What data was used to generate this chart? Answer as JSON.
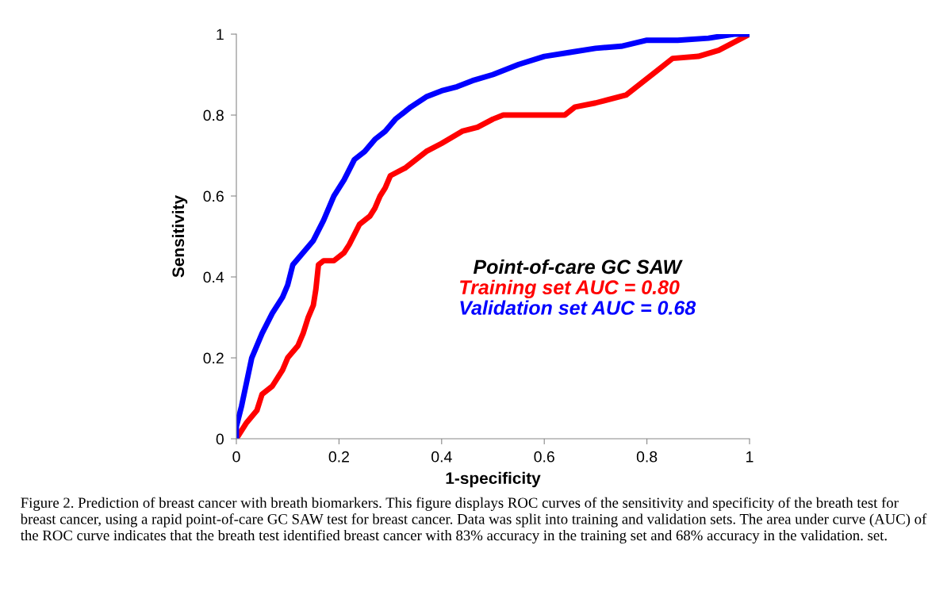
{
  "chart_data": {
    "type": "line",
    "xlabel": "1-specificity",
    "ylabel": "Sensitivity",
    "legend_title": "Point-of-care GC SAW",
    "legend": "center right",
    "grid": false,
    "marker": "none",
    "line_style": "solid",
    "xlim": [
      0,
      1
    ],
    "ylim": [
      0,
      1
    ],
    "xticks": [
      0,
      0.2,
      0.4,
      0.6,
      0.8,
      1
    ],
    "yticks": [
      0,
      0.2,
      0.4,
      0.6,
      0.8,
      1
    ],
    "series": [
      {
        "name": "Training set AUC = 0.80",
        "color": "#ff0000",
        "x": [
          0,
          0.02,
          0.04,
          0.05,
          0.07,
          0.09,
          0.1,
          0.12,
          0.13,
          0.14,
          0.15,
          0.155,
          0.16,
          0.17,
          0.19,
          0.21,
          0.22,
          0.24,
          0.26,
          0.27,
          0.28,
          0.29,
          0.3,
          0.33,
          0.37,
          0.4,
          0.44,
          0.47,
          0.5,
          0.52,
          0.64,
          0.66,
          0.7,
          0.76,
          0.79,
          0.82,
          0.85,
          0.9,
          0.94,
          1
        ],
        "values": [
          0,
          0.04,
          0.07,
          0.11,
          0.13,
          0.17,
          0.2,
          0.23,
          0.26,
          0.3,
          0.33,
          0.37,
          0.43,
          0.44,
          0.44,
          0.46,
          0.48,
          0.53,
          0.55,
          0.57,
          0.6,
          0.62,
          0.65,
          0.67,
          0.71,
          0.73,
          0.76,
          0.77,
          0.79,
          0.8,
          0.8,
          0.82,
          0.83,
          0.85,
          0.88,
          0.91,
          0.94,
          0.945,
          0.96,
          1
        ]
      },
      {
        "name": "Validation set AUC = 0.68",
        "color": "#0000ff",
        "x": [
          0,
          0,
          0.01,
          0.02,
          0.03,
          0.05,
          0.07,
          0.09,
          0.1,
          0.11,
          0.13,
          0.15,
          0.17,
          0.19,
          0.21,
          0.23,
          0.25,
          0.27,
          0.29,
          0.31,
          0.34,
          0.37,
          0.4,
          0.43,
          0.46,
          0.5,
          0.55,
          0.6,
          0.65,
          0.7,
          0.75,
          0.8,
          0.86,
          0.92,
          0.97,
          1
        ],
        "values": [
          0,
          0.03,
          0.08,
          0.14,
          0.2,
          0.26,
          0.31,
          0.35,
          0.38,
          0.43,
          0.46,
          0.49,
          0.54,
          0.6,
          0.64,
          0.69,
          0.71,
          0.74,
          0.76,
          0.79,
          0.82,
          0.845,
          0.86,
          0.87,
          0.885,
          0.9,
          0.925,
          0.945,
          0.955,
          0.965,
          0.97,
          0.985,
          0.985,
          0.99,
          1,
          1
        ]
      }
    ],
    "annotations": [
      "Figure 2. Prediction of breast cancer with breath biomarkers. This figure displays ROC curves of the sensitivity and specificity of the breath test for breast cancer, using a rapid point-of-care GC SAW test for breast cancer. Data was split into training and validation sets. The area under curve (AUC) of the ROC curve indicates that the breath test identified breast cancer with 83% accuracy in the training set and 68% accuracy in the validation. set."
    ]
  }
}
